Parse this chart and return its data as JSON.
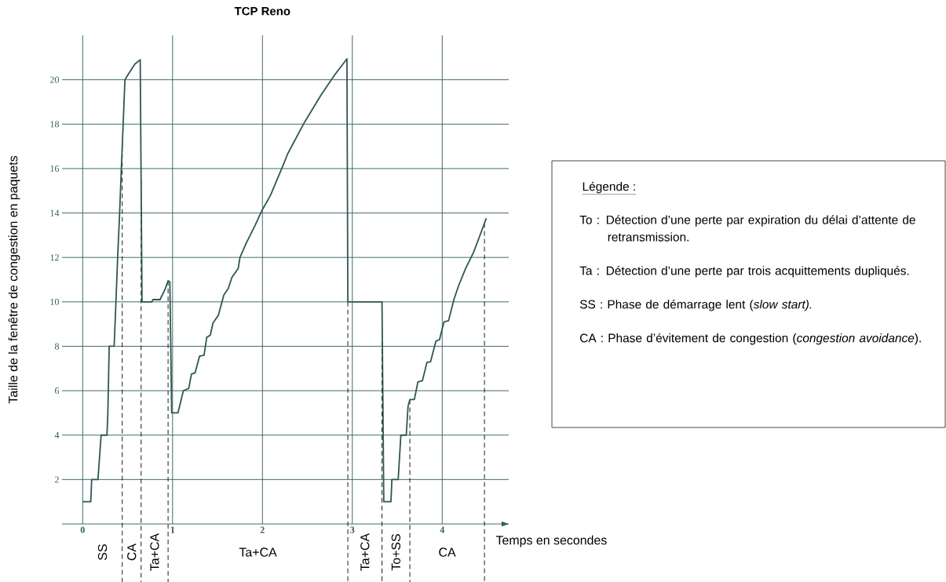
{
  "chart_data": {
    "type": "line",
    "title": "TCP Reno",
    "xlabel": "Temps en secondes",
    "ylabel": "Taille de la fenêtre de congestion en paquets",
    "x": [
      0.0,
      0.09,
      0.1,
      0.17,
      0.205,
      0.27,
      0.28,
      0.295,
      0.35,
      0.37,
      0.39,
      0.41,
      0.43,
      0.47,
      0.5,
      0.58,
      0.64,
      0.66,
      0.77,
      0.78,
      0.86,
      0.92,
      0.95,
      0.97,
      0.99,
      1.06,
      1.12,
      1.18,
      1.21,
      1.25,
      1.3,
      1.35,
      1.38,
      1.42,
      1.45,
      1.51,
      1.57,
      1.62,
      1.66,
      1.73,
      1.75,
      1.82,
      1.92,
      1.99,
      2.09,
      2.24,
      2.28,
      2.47,
      2.65,
      2.8,
      2.94,
      2.95,
      3.33,
      3.35,
      3.43,
      3.44,
      3.51,
      3.54,
      3.6,
      3.62,
      3.64,
      3.69,
      3.73,
      3.78,
      3.83,
      3.87,
      3.93,
      3.97,
      4.02,
      4.07,
      4.13,
      4.18,
      4.26,
      4.35,
      4.43,
      4.49
    ],
    "values": [
      1,
      1,
      2,
      2,
      4,
      4,
      5,
      8,
      8,
      10,
      12.1,
      13.9,
      16,
      20,
      20.2,
      20.7,
      20.9,
      10,
      10,
      10.1,
      10.1,
      10.6,
      10.95,
      10.9,
      5,
      5,
      6,
      6.1,
      6.75,
      6.8,
      7.55,
      7.6,
      8.4,
      8.5,
      9.05,
      9.4,
      10.3,
      10.6,
      11.1,
      11.5,
      12,
      12.65,
      13.46,
      14.08,
      14.8,
      16.25,
      16.66,
      18.1,
      19.3,
      20.2,
      20.94,
      10,
      10,
      1,
      1,
      2,
      2,
      4,
      4,
      5.3,
      5.6,
      5.6,
      6.4,
      6.45,
      7.28,
      7.3,
      8.23,
      8.3,
      9.1,
      9.15,
      10.1,
      10.7,
      11.5,
      12.24,
      13.1,
      13.76
    ],
    "color": "#2e5753",
    "xlim": [
      -0.23,
      4.74
    ],
    "ylim": [
      0,
      22
    ],
    "xticks": [
      0,
      1,
      2,
      3,
      4
    ],
    "yticks": [
      2,
      4,
      6,
      8,
      10,
      12,
      14,
      16,
      18,
      20
    ],
    "grid": true,
    "ref_lines": [
      {
        "axis": "x",
        "value": 0.44,
        "color": "#000000",
        "line_style": "dashed"
      },
      {
        "axis": "x",
        "value": 0.65,
        "color": "#000000",
        "line_style": "dashed"
      },
      {
        "axis": "x",
        "value": 0.95,
        "color": "#000000",
        "line_style": "dashed"
      },
      {
        "axis": "x",
        "value": 2.95,
        "color": "#000000",
        "line_style": "dashed"
      },
      {
        "axis": "x",
        "value": 3.33,
        "color": "#000000",
        "line_style": "dashed"
      },
      {
        "axis": "x",
        "value": 3.64,
        "color": "#000000",
        "line_style": "dashed"
      },
      {
        "axis": "x",
        "value": 4.47,
        "color": "#000000",
        "line_style": "dashed"
      }
    ],
    "annotations": [
      "SS",
      "CA",
      "Ta+CA",
      "Ta+CA",
      "Ta+CA",
      "To+SS",
      "CA",
      "Légende :",
      "To : Détection d’une perte par expiration du délai d’attente de retransmission.",
      "Ta : Détection d’une perte par trois acquittements dupliqués.",
      "SS : Phase de démarrage lent (*slow start).*",
      "CA : Phase d’évitement de congestion (*congestion avoidance*)."
    ]
  }
}
